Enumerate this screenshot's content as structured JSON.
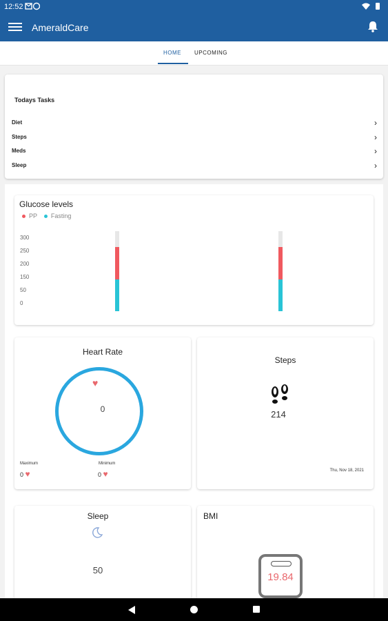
{
  "status_bar": {
    "time": "12:52",
    "left_icons": [
      "gmail-icon",
      "vpn-icon"
    ],
    "right_icons": [
      "wifi-icon",
      "battery-icon"
    ]
  },
  "app_bar": {
    "title": "AmeraldCare",
    "menu_icon": "hamburger-menu-icon",
    "action_icon": "bell-icon"
  },
  "tabs": [
    {
      "label": "HOME",
      "active": true
    },
    {
      "label": "UPCOMING",
      "active": false
    }
  ],
  "tasks": {
    "heading": "Todays Tasks",
    "items": [
      {
        "label": "Diet"
      },
      {
        "label": "Steps"
      },
      {
        "label": "Meds"
      },
      {
        "label": "Sleep"
      }
    ]
  },
  "glucose": {
    "title": "Glucose levels",
    "legend": [
      {
        "name": "PP",
        "color": "#f0595f"
      },
      {
        "name": "Fasting",
        "color": "#29c4d6"
      }
    ]
  },
  "chart_data": {
    "type": "bar",
    "title": "Glucose levels",
    "y_ticks": [
      "300",
      "250",
      "200",
      "150",
      "50",
      "0"
    ],
    "ylim": [
      0,
      300
    ],
    "categories": [
      "",
      ""
    ],
    "series": [
      {
        "name": "Fasting",
        "values": [
          120,
          120
        ],
        "color": "#29c4d6"
      },
      {
        "name": "PP",
        "values": [
          120,
          120
        ],
        "color": "#f0595f"
      }
    ],
    "legend_placement": "top-left",
    "grid": false
  },
  "heart_rate": {
    "title": "Heart Rate",
    "value": "0",
    "min_label": "Minimum",
    "max_label": "Maximum",
    "min_value": "0",
    "max_value": "0",
    "accent": "#2aa7df"
  },
  "steps": {
    "title": "Steps",
    "value": "214",
    "date": "Thu, Nov 18, 2021"
  },
  "sleep": {
    "title": "Sleep",
    "value": "50"
  },
  "bmi": {
    "title": "BMI",
    "value": "19.84",
    "value_color": "#e9686d"
  },
  "nav": {
    "icons": [
      "back-icon",
      "home-icon",
      "recents-icon"
    ]
  }
}
